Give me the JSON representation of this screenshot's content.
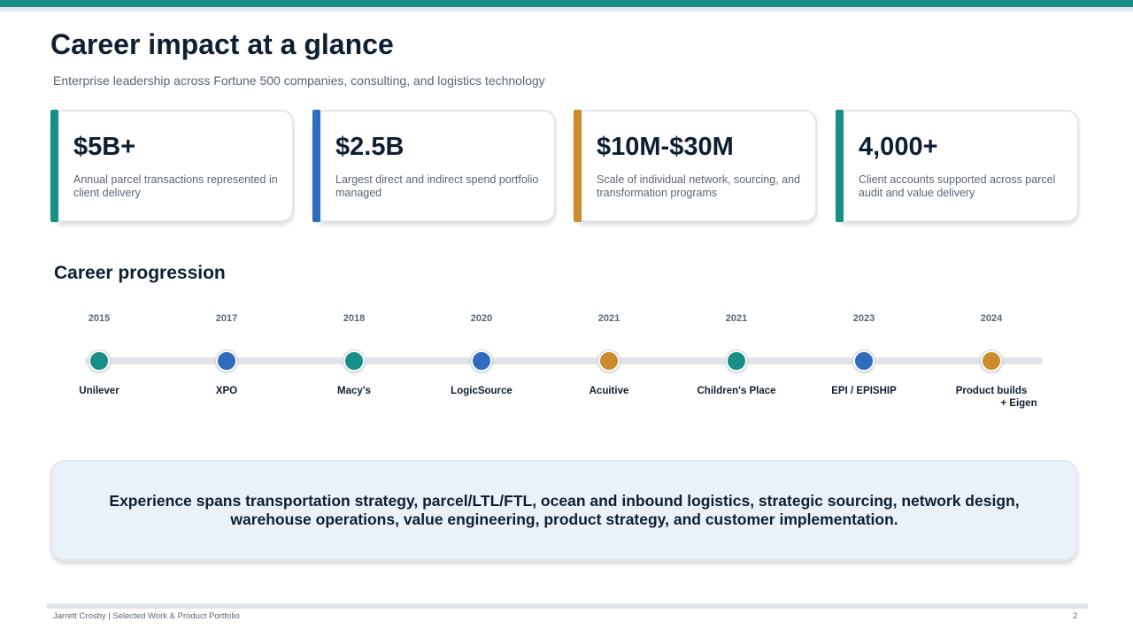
{
  "header": {
    "title": "Career impact at a glance",
    "subtitle": "Enterprise leadership across Fortune 500 companies, consulting, and logistics technology"
  },
  "colors": {
    "teal": "#178f86",
    "blue": "#2f6cbf",
    "gold": "#cc8b2c"
  },
  "metrics": [
    {
      "value": "$5B+",
      "description": "Annual parcel transactions represented in client delivery",
      "accent": "#178f86"
    },
    {
      "value": "$2.5B",
      "description": "Largest direct and indirect spend portfolio managed",
      "accent": "#2f6cbf"
    },
    {
      "value": "$10M-$30M",
      "description": "Scale of individual network, sourcing, and transformation programs",
      "accent": "#cc8b2c"
    },
    {
      "value": "4,000+",
      "description": "Client accounts supported across parcel audit and value delivery",
      "accent": "#178f86"
    }
  ],
  "progression": {
    "title": "Career progression",
    "milestones": [
      {
        "year": "2015",
        "company": "Unilever",
        "color": "#178f86"
      },
      {
        "year": "2017",
        "company": "XPO",
        "color": "#2f6cbf"
      },
      {
        "year": "2018",
        "company": "Macy's",
        "color": "#178f86"
      },
      {
        "year": "2020",
        "company": "LogicSource",
        "color": "#2f6cbf"
      },
      {
        "year": "2021",
        "company": "Acuitive",
        "color": "#cc8b2c"
      },
      {
        "year": "2021",
        "company": "Children's Place",
        "color": "#178f86"
      },
      {
        "year": "2023",
        "company": "EPI / EPISHIP",
        "color": "#2f6cbf"
      },
      {
        "year": "2024",
        "company": "Product builds",
        "company_line2": "+ Eigen",
        "color": "#cc8b2c"
      }
    ]
  },
  "summary": {
    "text": "Experience spans transportation strategy, parcel/LTL/FTL, ocean and inbound logistics, strategic sourcing, network design, warehouse operations, value engineering, product strategy, and customer implementation."
  },
  "footer": {
    "left": "Jarrett Crosby | Selected Work & Product Portfolio",
    "page_number": "2"
  }
}
